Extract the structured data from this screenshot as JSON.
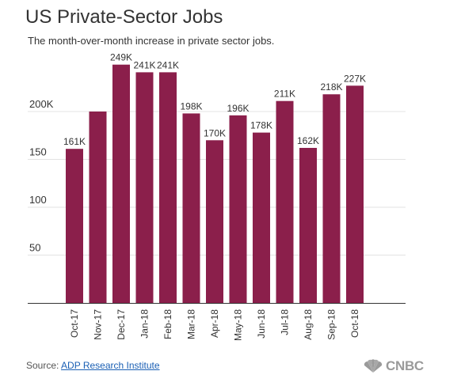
{
  "header": {
    "title": "US Private-Sector Jobs",
    "subtitle": "The month-over-month increase in private sector jobs."
  },
  "footer": {
    "source_label": "Source:",
    "source_link": "ADP Research Institute",
    "logo_text": "CNBC"
  },
  "colors": {
    "bar": "#8b1f4b",
    "grid": "#e3e3e3",
    "axis": "#333333",
    "logo": "#9a9a9a"
  },
  "chart_data": {
    "type": "bar",
    "title": "US Private-Sector Jobs",
    "subtitle": "The month-over-month increase in private sector jobs.",
    "categories": [
      "Oct-17",
      "Nov-17",
      "Dec-17",
      "Jan-18",
      "Feb-18",
      "Mar-18",
      "Apr-18",
      "May-18",
      "Jun-18",
      "Jul-18",
      "Aug-18",
      "Sep-18",
      "Oct-18"
    ],
    "values": [
      161,
      200,
      249,
      241,
      241,
      198,
      170,
      196,
      178,
      211,
      162,
      218,
      227
    ],
    "data_labels": [
      "161K",
      "",
      "249K",
      "241K",
      "241K",
      "198K",
      "170K",
      "196K",
      "178K",
      "211K",
      "162K",
      "218K",
      "227K"
    ],
    "y_ticks": [
      50,
      100,
      150,
      200
    ],
    "y_tick_labels": [
      "50",
      "100",
      "150",
      "200K"
    ],
    "ylim": [
      0,
      250
    ],
    "grid": true,
    "xlabel": "",
    "ylabel": ""
  }
}
